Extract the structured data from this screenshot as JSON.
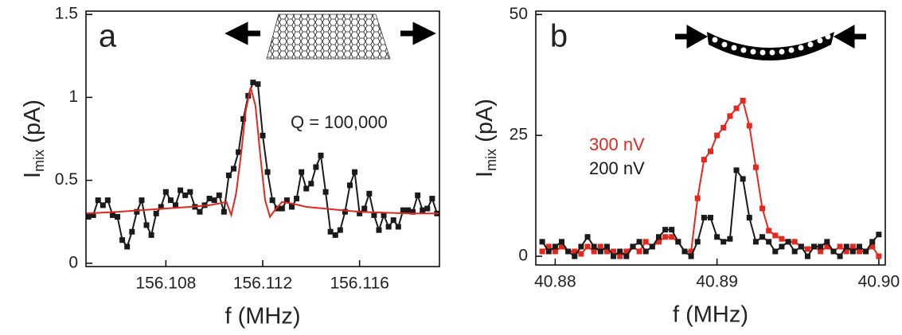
{
  "chart_data": [
    {
      "type": "line",
      "panel_label": "a",
      "annotation": "Q = 100,000",
      "xlabel": "f (MHz)",
      "ylabel": [
        "I",
        "mix",
        " (pA)"
      ],
      "xlim": [
        156.1047,
        156.1193
      ],
      "ylim": [
        -0.02,
        1.52
      ],
      "xticks": [
        156.108,
        156.112,
        156.116
      ],
      "yticks": [
        0,
        0.5,
        1,
        1.5
      ],
      "series": [
        {
          "color": "#1a1a1a",
          "marker": "square",
          "x": [
            156.1048,
            156.105,
            156.1052,
            156.1054,
            156.1056,
            156.1058,
            156.106,
            156.1062,
            156.1064,
            156.1066,
            156.1068,
            156.107,
            156.1072,
            156.1074,
            156.1076,
            156.1078,
            156.108,
            156.1082,
            156.1084,
            156.1086,
            156.1088,
            156.109,
            156.1092,
            156.1094,
            156.1096,
            156.1098,
            156.11,
            156.1102,
            156.1104,
            156.1106,
            156.1108,
            156.111,
            156.1112,
            156.1114,
            156.1116,
            156.1118,
            156.112,
            156.1122,
            156.1124,
            156.1126,
            156.1128,
            156.113,
            156.1132,
            156.1134,
            156.1136,
            156.1138,
            156.114,
            156.1142,
            156.1144,
            156.1146,
            156.1148,
            156.115,
            156.1152,
            156.1154,
            156.1156,
            156.1158,
            156.116,
            156.1162,
            156.1164,
            156.1166,
            156.1168,
            156.117,
            156.1172,
            156.1174,
            156.1176,
            156.1178,
            156.118,
            156.1182,
            156.1184,
            156.1186,
            156.1188,
            156.119,
            156.1192
          ],
          "values": [
            0.28,
            0.29,
            0.38,
            0.35,
            0.38,
            0.29,
            0.28,
            0.14,
            0.1,
            0.19,
            0.31,
            0.38,
            0.23,
            0.17,
            0.3,
            0.34,
            0.43,
            0.38,
            0.35,
            0.44,
            0.41,
            0.43,
            0.34,
            0.31,
            0.35,
            0.39,
            0.38,
            0.41,
            0.31,
            0.53,
            0.57,
            0.67,
            0.87,
            1.01,
            1.09,
            1.08,
            0.77,
            0.55,
            0.38,
            0.33,
            0.33,
            0.38,
            0.34,
            0.39,
            0.55,
            0.45,
            0.48,
            0.58,
            0.65,
            0.43,
            0.19,
            0.17,
            0.2,
            0.31,
            0.47,
            0.55,
            0.3,
            0.33,
            0.42,
            0.29,
            0.2,
            0.29,
            0.22,
            0.26,
            0.22,
            0.32,
            0.32,
            0.31,
            0.41,
            0.32,
            0.33,
            0.39,
            0.3
          ]
        },
        {
          "color": "#e3281e",
          "marker": "none",
          "x": [
            156.1047,
            156.106,
            156.107,
            156.108,
            156.109,
            156.1098,
            156.1102,
            156.1105,
            156.1107,
            156.1109,
            156.1111,
            156.1113,
            156.1115,
            156.1117,
            156.1119,
            156.1121,
            156.1123,
            156.1125,
            156.1128,
            156.1132,
            156.1138,
            156.1145,
            156.116,
            156.118,
            156.1193
          ],
          "values": [
            0.3,
            0.31,
            0.32,
            0.33,
            0.34,
            0.35,
            0.36,
            0.37,
            0.29,
            0.42,
            0.65,
            0.92,
            1.06,
            0.95,
            0.65,
            0.38,
            0.28,
            0.32,
            0.37,
            0.36,
            0.34,
            0.33,
            0.31,
            0.3,
            0.3
          ]
        }
      ]
    },
    {
      "type": "line",
      "panel_label": "b",
      "xlabel": "f (MHz)",
      "ylabel": [
        "I",
        "mix",
        " (pA)"
      ],
      "xlim": [
        40.8788,
        40.9004
      ],
      "ylim": [
        -1.8,
        50.7
      ],
      "xticks": [
        40.88,
        40.89,
        {
          "value": 40.9,
          "label": "40.90"
        }
      ],
      "yticks": [
        0,
        25,
        50
      ],
      "x": [
        40.8792,
        40.8796,
        40.88,
        40.8804,
        40.8808,
        40.8812,
        40.8816,
        40.882,
        40.8824,
        40.8828,
        40.8832,
        40.8836,
        40.884,
        40.8844,
        40.8848,
        40.8852,
        40.8856,
        40.886,
        40.8864,
        40.8868,
        40.8872,
        40.8876,
        40.888,
        40.8884,
        40.8888,
        40.8892,
        40.8896,
        40.89,
        40.8904,
        40.8908,
        40.8912,
        40.8916,
        40.892,
        40.8924,
        40.8928,
        40.8932,
        40.8936,
        40.894,
        40.8944,
        40.8948,
        40.8952,
        40.8956,
        40.896,
        40.8964,
        40.8968,
        40.8972,
        40.8976,
        40.898,
        40.8984,
        40.8988,
        40.8992,
        40.8996,
        40.9
      ],
      "series": [
        {
          "name": "300 nV",
          "color": "#e3281e",
          "marker": "square",
          "values": [
            1,
            2,
            1,
            2,
            1,
            1,
            0.5,
            2,
            1,
            2,
            1,
            1,
            0,
            1,
            2,
            1,
            3,
            2,
            3,
            4,
            4,
            3,
            1,
            1,
            12,
            20,
            21.7,
            25,
            26.6,
            29,
            30.6,
            32.2,
            27,
            18.4,
            9.9,
            5.3,
            4.3,
            3.6,
            3,
            3,
            2,
            1.5,
            2,
            1,
            2,
            1,
            2,
            1,
            2,
            1,
            1,
            2,
            0
          ]
        },
        {
          "name": "200 nV",
          "color": "#1a1a1a",
          "marker": "square",
          "values": [
            3,
            1,
            2,
            3,
            1,
            0,
            2,
            4,
            2,
            1,
            2,
            0,
            1,
            0,
            2,
            3,
            1,
            2,
            4,
            5.5,
            5.5,
            3,
            1,
            0,
            3,
            8,
            8,
            4,
            3,
            3.6,
            17.8,
            16,
            8,
            3,
            4,
            3,
            1,
            2,
            3,
            1,
            2,
            0,
            2,
            2,
            3,
            1,
            0,
            2,
            1,
            2,
            1,
            3,
            4.5
          ]
        }
      ]
    }
  ]
}
